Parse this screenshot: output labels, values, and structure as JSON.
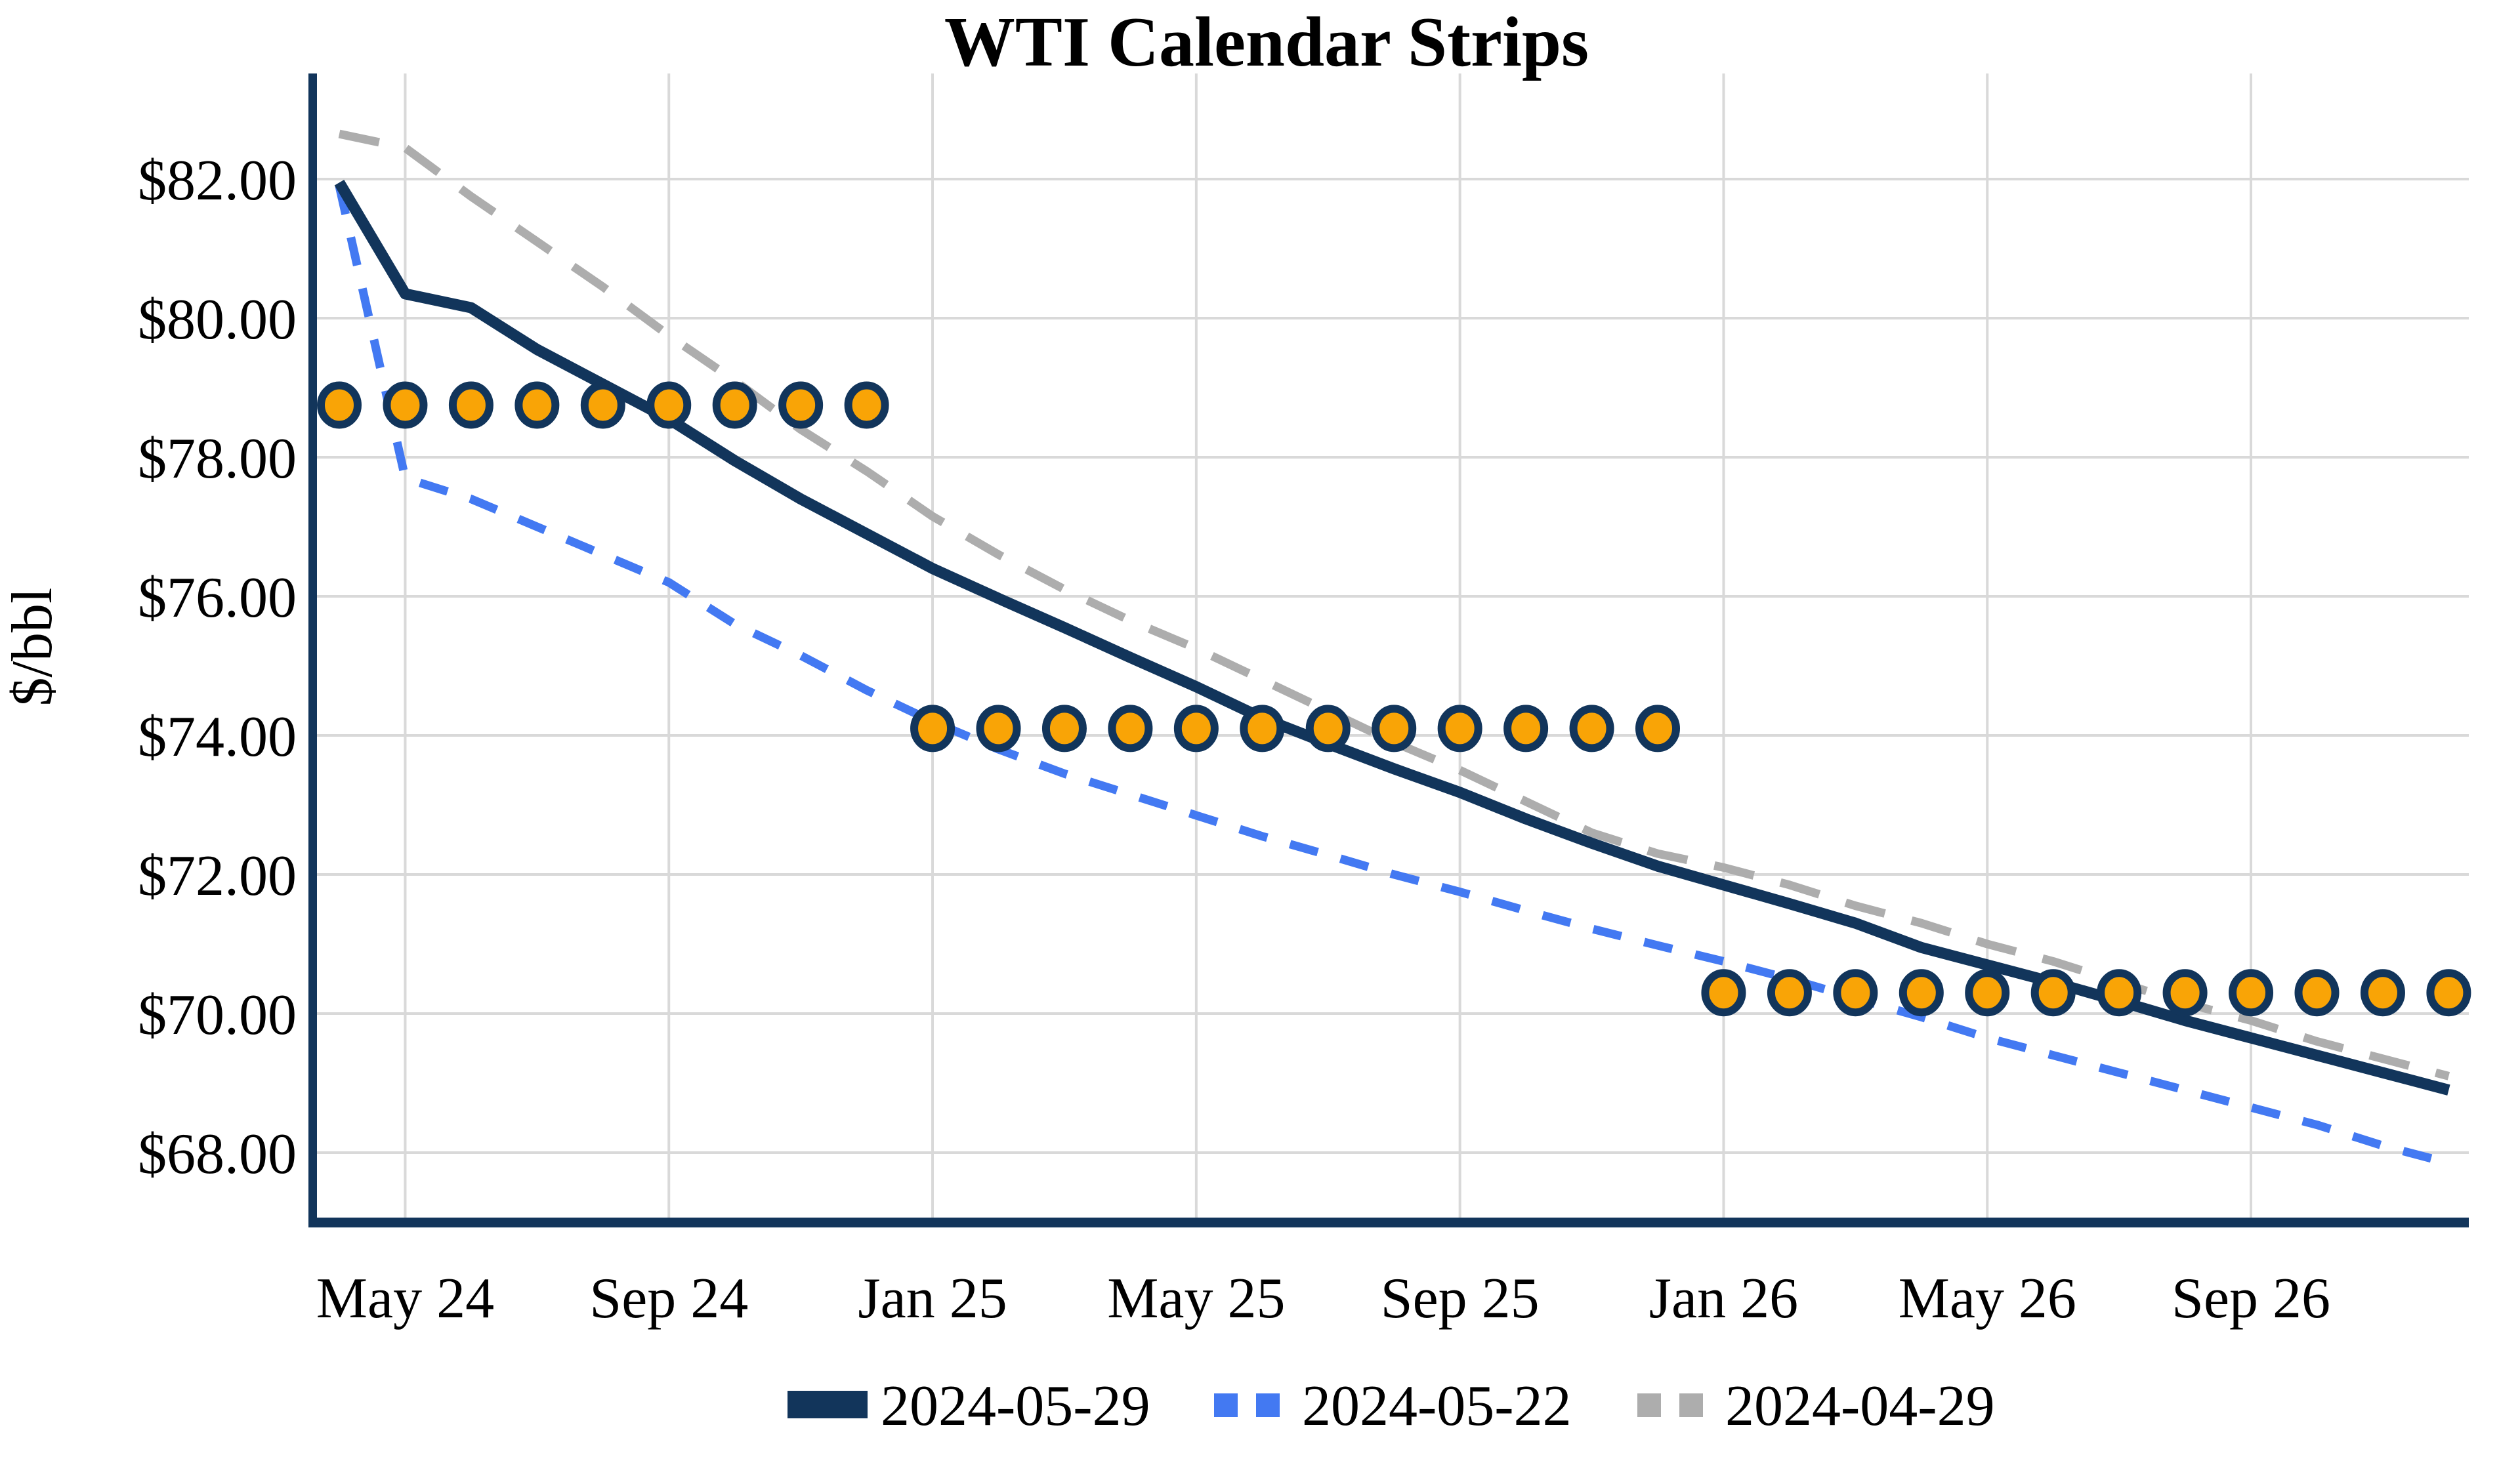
{
  "title": "WTI Calendar Strips",
  "y_axis": {
    "label": "$/bbl",
    "tick_labels": [
      "$82.00",
      "$80.00",
      "$78.00",
      "$76.00",
      "$74.00",
      "$72.00",
      "$70.00",
      "$68.00"
    ],
    "tick_values": [
      82,
      80,
      78,
      76,
      74,
      72,
      70,
      68
    ]
  },
  "x_axis": {
    "tick_labels": [
      "May 24",
      "Sep 24",
      "Jan 25",
      "May 25",
      "Sep 25",
      "Jan 26",
      "May 26",
      "Sep 26"
    ],
    "tick_month_indices": [
      1,
      5,
      9,
      13,
      17,
      21,
      25,
      29
    ]
  },
  "legend": {
    "items": [
      {
        "label": "2024-05-29",
        "marker": "solid-line",
        "color": "#12355B"
      },
      {
        "label": "2024-05-22",
        "marker": "dashed-line",
        "color": "#4379F2"
      },
      {
        "label": "2024-04-29",
        "marker": "dashed-line",
        "color": "#ADADAD"
      }
    ]
  },
  "chart_data": {
    "type": "line",
    "title": "WTI Calendar Strips",
    "xlabel": "",
    "ylabel": "$/bbl",
    "ylim": [
      66.9,
      83.5
    ],
    "grid": true,
    "legend_position": "bottom",
    "months": [
      "Apr 24",
      "May 24",
      "Jun 24",
      "Jul 24",
      "Aug 24",
      "Sep 24",
      "Oct 24",
      "Nov 24",
      "Dec 24",
      "Jan 25",
      "Feb 25",
      "Mar 25",
      "Apr 25",
      "May 25",
      "Jun 25",
      "Jul 25",
      "Aug 25",
      "Sep 25",
      "Oct 25",
      "Nov 25",
      "Dec 25",
      "Jan 26",
      "Feb 26",
      "Mar 26",
      "Apr 26",
      "May 26",
      "Jun 26",
      "Jul 26",
      "Aug 26",
      "Sep 26",
      "Oct 26",
      "Nov 26",
      "Dec 26"
    ],
    "series": [
      {
        "name": "2024-04-29",
        "style": "dashed",
        "color": "#ADADAD",
        "values": [
          82.65,
          82.45,
          81.75,
          81.1,
          80.45,
          79.75,
          79.1,
          78.4,
          77.8,
          77.15,
          76.6,
          76.1,
          75.65,
          75.25,
          74.8,
          74.35,
          73.9,
          73.5,
          73.05,
          72.6,
          72.3,
          72.1,
          71.85,
          71.55,
          71.3,
          71.0,
          70.75,
          70.45,
          70.15,
          69.9,
          69.6,
          69.35,
          69.1
        ]
      },
      {
        "name": "2024-05-22",
        "style": "dashed",
        "color": "#4379F2",
        "values": [
          81.9,
          77.7,
          77.4,
          77.0,
          76.6,
          76.2,
          75.6,
          75.15,
          74.65,
          74.2,
          73.8,
          73.45,
          73.15,
          72.85,
          72.55,
          72.28,
          72.0,
          71.75,
          71.48,
          71.22,
          70.98,
          70.75,
          70.5,
          70.22,
          69.95,
          69.65,
          69.4,
          69.15,
          68.9,
          68.65,
          68.4,
          68.1,
          67.85
        ]
      },
      {
        "name": "2024-05-29",
        "style": "solid",
        "color": "#12355B",
        "values": [
          81.95,
          80.35,
          80.15,
          79.55,
          79.05,
          78.55,
          77.95,
          77.4,
          76.9,
          76.4,
          75.97,
          75.55,
          75.12,
          74.7,
          74.25,
          73.88,
          73.52,
          73.18,
          72.8,
          72.45,
          72.12,
          71.85,
          71.58,
          71.3,
          70.95,
          70.7,
          70.45,
          70.18,
          69.9,
          69.65,
          69.4,
          69.15,
          68.9
        ]
      }
    ],
    "strip_markers": {
      "fill_color": "#F9A406",
      "outline_color": "#12355B",
      "groups": [
        {
          "value": 78.75,
          "from": "Apr 24",
          "to": "Dec 24",
          "month_start_index": 0,
          "month_end_index": 8
        },
        {
          "value": 74.1,
          "from": "Jan 25",
          "to": "Dec 25",
          "month_start_index": 9,
          "month_end_index": 20
        },
        {
          "value": 70.3,
          "from": "Jan 26",
          "to": "Dec 26",
          "month_start_index": 21,
          "month_end_index": 32
        }
      ]
    },
    "colors": {
      "axis": "#12355B",
      "grid": "#D9D9D9",
      "background": "#FFFFFF"
    }
  }
}
